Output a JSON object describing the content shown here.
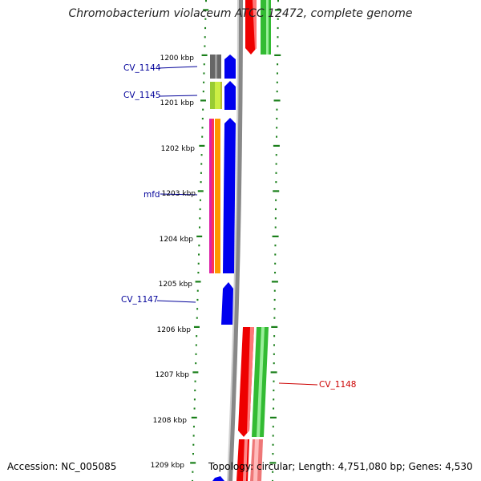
{
  "title": "Chromobacterium violaceum ATCC 12472, complete genome",
  "accession": "Accession: NC_005085",
  "topology": "Topology: circular; Length: 4,751,080 bp; Genes: 4,530",
  "colors": {
    "tick": "#1a7f1a",
    "backbone": "#888888",
    "forward_gene": "#0000ee",
    "label_blue": "#000099",
    "label_red": "#cc0000"
  },
  "kbp_labels": [
    "1200 kbp",
    "1201 kbp",
    "1202 kbp",
    "1203 kbp",
    "1204 kbp",
    "1205 kbp",
    "1206 kbp",
    "1207 kbp",
    "1208 kbp",
    "1209 kbp"
  ],
  "gene_labels": [
    {
      "text": "CV_1144",
      "color": "blue"
    },
    {
      "text": "CV_1145",
      "color": "blue"
    },
    {
      "text": "mfd",
      "color": "blue"
    },
    {
      "text": "CV_1147",
      "color": "blue"
    },
    {
      "text": "CV_1148",
      "color": "red"
    }
  ]
}
